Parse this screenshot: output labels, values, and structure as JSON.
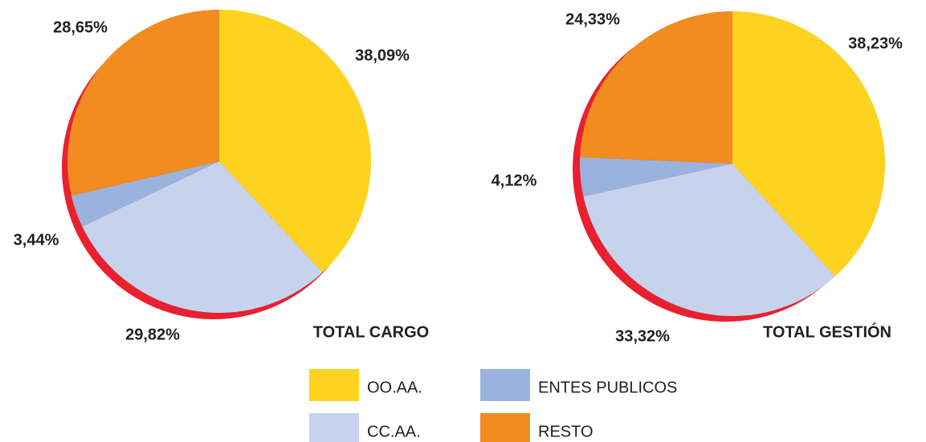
{
  "chart_data": [
    {
      "type": "pie",
      "title": "TOTAL CARGO",
      "categories": [
        "OO.AA.",
        "CC.AA.",
        "ENTES PUBLICOS",
        "RESTO"
      ],
      "values": [
        38.09,
        29.82,
        3.44,
        28.65
      ],
      "value_labels": [
        "38,09%",
        "29,82%",
        "3,44%",
        "28,65%"
      ],
      "colors": [
        "#fdd31f",
        "#c7d3ec",
        "#9ab3de",
        "#f28b20"
      ]
    },
    {
      "type": "pie",
      "title": "TOTAL GESTIÓN",
      "categories": [
        "OO.AA.",
        "CC.AA.",
        "ENTES PUBLICOS",
        "RESTO"
      ],
      "values": [
        38.23,
        33.32,
        4.12,
        24.33
      ],
      "value_labels": [
        "38,23%",
        "33,32%",
        "4,12%",
        "24,33%"
      ],
      "colors": [
        "#fdd31f",
        "#c7d3ec",
        "#9ab3de",
        "#f28b20"
      ]
    }
  ]
}
